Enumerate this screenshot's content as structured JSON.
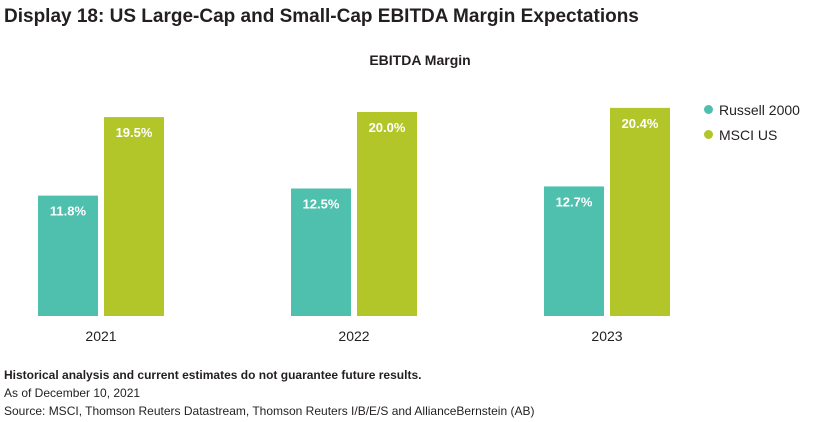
{
  "header": {
    "display_title": "Display 18: US Large-Cap and Small-Cap EBITDA Margin Expectations"
  },
  "chart_data": {
    "type": "bar",
    "title": "EBITDA Margin",
    "categories": [
      "2021",
      "2022",
      "2023"
    ],
    "series": [
      {
        "name": "Russell 2000",
        "values": [
          11.8,
          12.5,
          12.7
        ],
        "labels": [
          "11.8%",
          "12.5%",
          "12.7%"
        ],
        "color": "#4fbfae"
      },
      {
        "name": "MSCI US",
        "values": [
          19.5,
          20.0,
          20.4
        ],
        "labels": [
          "19.5%",
          "20.0%",
          "20.4%"
        ],
        "color": "#b2c629"
      }
    ],
    "xlabel": "",
    "ylabel": "",
    "ylim": [
      0,
      21
    ],
    "grid": false,
    "legend_position": "right"
  },
  "footer": {
    "disclaimer": "Historical analysis and current estimates do not guarantee future results.",
    "as_of": "As of December 10, 2021",
    "source": "Source: MSCI, Thomson Reuters Datastream, Thomson Reuters I/B/E/S and AllianceBernstein (AB)"
  }
}
